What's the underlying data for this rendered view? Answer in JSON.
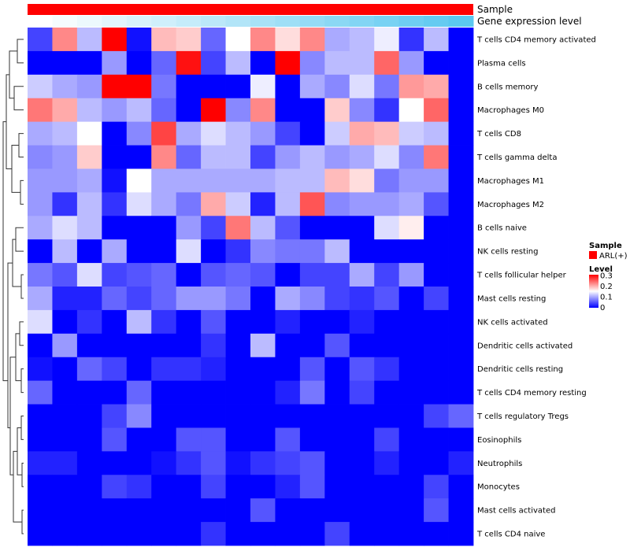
{
  "chart_data": {
    "type": "heatmap",
    "title": "",
    "column_annotations": [
      {
        "name": "Sample",
        "color": "#ff0000"
      },
      {
        "name": "Gene expression level",
        "gradient": [
          "#ffffff",
          "#5bc8f0"
        ]
      }
    ],
    "rows": [
      "T cells CD4 memory activated",
      "Plasma cells",
      "B cells memory",
      "Macrophages M0",
      "T cells CD8",
      "T cells gamma delta",
      "Macrophages M1",
      "Macrophages M2",
      "B cells naive",
      "NK cells resting",
      "T cells follicular helper",
      "Mast cells resting",
      "NK cells activated",
      "Dendritic cells activated",
      "Dendritic cells resting",
      "T cells CD4 memory resting",
      "T cells regulatory  Tregs",
      "Eosinophils",
      "Neutrophils",
      "Monocytes",
      "Mast cells activated",
      "T cells CD4 naive"
    ],
    "n_columns": 18,
    "values": [
      [
        0.04,
        0.22,
        0.11,
        0.3,
        0.01,
        0.19,
        0.18,
        0.06,
        0.15,
        0.22,
        0.17,
        0.22,
        0.1,
        0.11,
        0.14,
        0.03,
        0.11,
        0.0
      ],
      [
        0.0,
        0.0,
        0.0,
        0.09,
        0.0,
        0.06,
        0.29,
        0.04,
        0.11,
        0.0,
        0.3,
        0.08,
        0.11,
        0.11,
        0.24,
        0.09,
        0.0,
        0.0
      ],
      [
        0.12,
        0.1,
        0.09,
        0.3,
        0.3,
        0.07,
        0.0,
        0.0,
        0.0,
        0.14,
        0.0,
        0.1,
        0.08,
        0.13,
        0.07,
        0.21,
        0.2,
        0.0
      ],
      [
        0.23,
        0.2,
        0.11,
        0.09,
        0.11,
        0.06,
        0.0,
        0.3,
        0.08,
        0.22,
        0.0,
        0.0,
        0.18,
        0.08,
        0.03,
        0.15,
        0.24,
        0.0
      ],
      [
        0.1,
        0.11,
        0.15,
        0.0,
        0.08,
        0.26,
        0.1,
        0.13,
        0.11,
        0.09,
        0.04,
        0.0,
        0.12,
        0.2,
        0.19,
        0.12,
        0.11,
        0.0
      ],
      [
        0.08,
        0.09,
        0.18,
        0.0,
        0.0,
        0.22,
        0.06,
        0.11,
        0.11,
        0.04,
        0.09,
        0.11,
        0.09,
        0.1,
        0.13,
        0.08,
        0.23,
        0.0
      ],
      [
        0.09,
        0.09,
        0.1,
        0.01,
        0.15,
        0.1,
        0.1,
        0.1,
        0.1,
        0.1,
        0.11,
        0.11,
        0.19,
        0.17,
        0.07,
        0.09,
        0.09,
        0.0
      ],
      [
        0.09,
        0.03,
        0.11,
        0.03,
        0.13,
        0.1,
        0.07,
        0.2,
        0.12,
        0.02,
        0.11,
        0.25,
        0.08,
        0.09,
        0.09,
        0.1,
        0.05,
        0.0
      ],
      [
        0.1,
        0.13,
        0.11,
        0.0,
        0.0,
        0.0,
        0.09,
        0.04,
        0.23,
        0.11,
        0.05,
        0.0,
        0.0,
        0.0,
        0.13,
        0.16,
        0.0,
        0.0
      ],
      [
        0.0,
        0.11,
        0.0,
        0.1,
        0.0,
        0.0,
        0.13,
        0.0,
        0.03,
        0.08,
        0.07,
        0.07,
        0.11,
        0.0,
        0.0,
        0.0,
        0.0,
        0.0
      ],
      [
        0.07,
        0.05,
        0.13,
        0.04,
        0.05,
        0.06,
        0.0,
        0.05,
        0.06,
        0.05,
        0.0,
        0.04,
        0.04,
        0.1,
        0.04,
        0.09,
        0.0,
        0.0
      ],
      [
        0.1,
        0.02,
        0.02,
        0.06,
        0.04,
        0.06,
        0.09,
        0.09,
        0.07,
        0.0,
        0.1,
        0.08,
        0.04,
        0.03,
        0.05,
        0.0,
        0.04,
        0.0
      ],
      [
        0.13,
        0.0,
        0.03,
        0.0,
        0.11,
        0.03,
        0.0,
        0.05,
        0.0,
        0.0,
        0.02,
        0.0,
        0.0,
        0.02,
        0.0,
        0.0,
        0.0,
        0.0
      ],
      [
        0.0,
        0.09,
        0.0,
        0.0,
        0.0,
        0.0,
        0.0,
        0.03,
        0.0,
        0.11,
        0.0,
        0.0,
        0.05,
        0.0,
        0.0,
        0.0,
        0.0,
        0.0
      ],
      [
        0.01,
        0.0,
        0.06,
        0.04,
        0.0,
        0.03,
        0.03,
        0.02,
        0.0,
        0.0,
        0.0,
        0.05,
        0.0,
        0.05,
        0.03,
        0.0,
        0.0,
        0.0
      ],
      [
        0.06,
        0.0,
        0.0,
        0.0,
        0.06,
        0.0,
        0.0,
        0.0,
        0.0,
        0.0,
        0.02,
        0.07,
        0.0,
        0.04,
        0.0,
        0.0,
        0.0,
        0.0
      ],
      [
        0.0,
        0.0,
        0.0,
        0.04,
        0.08,
        0.0,
        0.0,
        0.0,
        0.0,
        0.0,
        0.0,
        0.0,
        0.0,
        0.0,
        0.0,
        0.0,
        0.04,
        0.06
      ],
      [
        0.0,
        0.0,
        0.0,
        0.05,
        0.0,
        0.0,
        0.05,
        0.05,
        0.0,
        0.0,
        0.05,
        0.0,
        0.0,
        0.0,
        0.04,
        0.0,
        0.0,
        0.0
      ],
      [
        0.02,
        0.02,
        0.0,
        0.0,
        0.0,
        0.01,
        0.03,
        0.05,
        0.01,
        0.03,
        0.04,
        0.05,
        0.0,
        0.0,
        0.02,
        0.0,
        0.0,
        0.02
      ],
      [
        0.0,
        0.0,
        0.0,
        0.04,
        0.03,
        0.0,
        0.0,
        0.04,
        0.0,
        0.0,
        0.02,
        0.05,
        0.0,
        0.0,
        0.0,
        0.0,
        0.04,
        0.0
      ],
      [
        0.0,
        0.0,
        0.0,
        0.0,
        0.0,
        0.0,
        0.0,
        0.0,
        0.0,
        0.05,
        0.0,
        0.0,
        0.0,
        0.0,
        0.0,
        0.0,
        0.05,
        0.0
      ],
      [
        0.0,
        0.0,
        0.0,
        0.0,
        0.0,
        0.0,
        0.0,
        0.03,
        0.0,
        0.0,
        0.0,
        0.0,
        0.04,
        0.0,
        0.0,
        0.0,
        0.0,
        0.0
      ]
    ],
    "colormap": {
      "low": "#0000ff",
      "mid": "#ffffff",
      "high": "#ff0000",
      "range": [
        0,
        0.3
      ]
    },
    "legend": {
      "sample_title": "Sample",
      "sample_entry": "ARL(+)",
      "sample_color": "#ff0000",
      "level_title": "Level",
      "level_ticks": [
        "0.3",
        "0.2",
        "0.1",
        "0"
      ]
    },
    "dendrogram": "rows"
  }
}
